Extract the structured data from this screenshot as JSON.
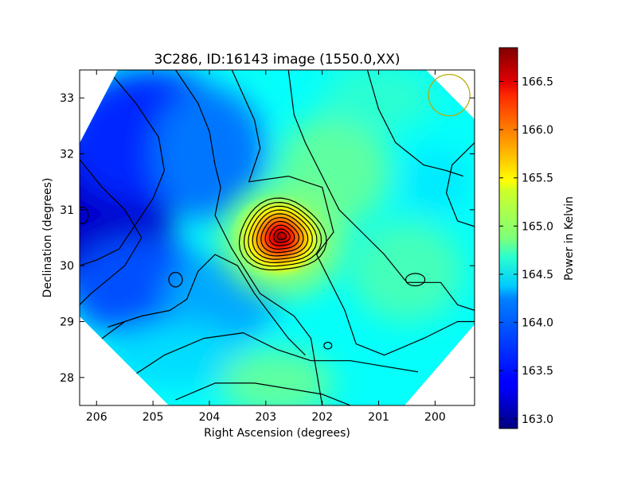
{
  "chart_data": {
    "type": "heatmap",
    "title": "3C286, ID:16143 image (1550.0,XX)",
    "xlabel": "Right Ascension (degrees)",
    "ylabel": "Declination (degrees)",
    "x_ticks": [
      206,
      205,
      204,
      203,
      202,
      201,
      200
    ],
    "y_ticks": [
      28,
      29,
      30,
      31,
      32,
      33
    ],
    "xlim": [
      206.3,
      199.3
    ],
    "ylim": [
      27.5,
      33.5
    ],
    "colorbar": {
      "label": "Power in Kelvin",
      "ticks": [
        163.0,
        163.5,
        164.0,
        164.5,
        165.0,
        165.5,
        166.0,
        166.5
      ],
      "tick_labels": [
        "163.0",
        "163.5",
        "164.0",
        "164.5",
        "165.0",
        "165.5",
        "166.0",
        "166.5"
      ],
      "range": [
        162.9,
        166.85
      ],
      "colormap": "jet"
    },
    "field_features": {
      "background_level": 164.4,
      "peak": {
        "ra": 202.7,
        "dec": 30.45,
        "value": 166.8
      },
      "minimum": {
        "ra": 206.3,
        "dec": 30.9,
        "value": 162.9
      },
      "low_region": {
        "ra": 204.3,
        "dec": 29.7,
        "value": 163.9
      },
      "high_spot_right": {
        "ra": 200.4,
        "dec": 29.7,
        "value": 164.8
      },
      "contour_levels": [
        163.2,
        163.5,
        163.8,
        164.1,
        164.4,
        164.7,
        165.0,
        165.2,
        165.4,
        165.6,
        165.8,
        166.0,
        166.3,
        166.6
      ]
    },
    "beam": {
      "ra": 199.75,
      "dec": 33.05,
      "color": "#b8a800"
    },
    "axes_color": "#000000",
    "background": "#ffffff"
  }
}
